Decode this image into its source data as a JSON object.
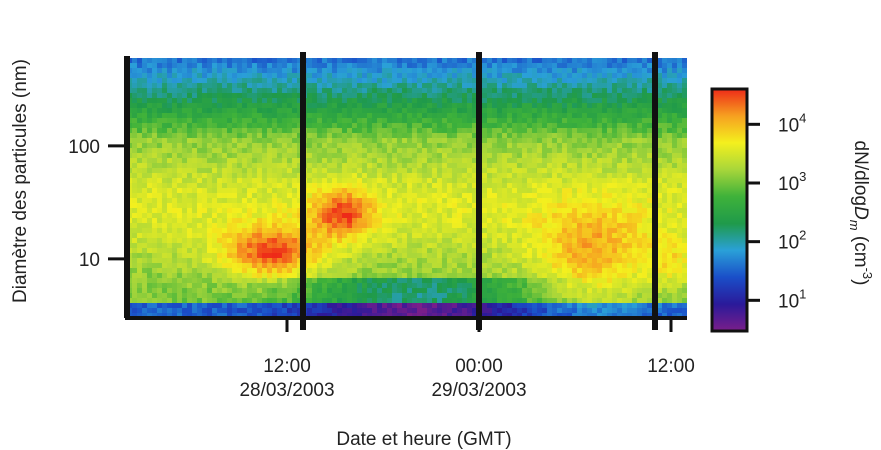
{
  "chart_data": {
    "type": "heatmap",
    "title": "",
    "xlabel": "Date et heure (GMT)",
    "ylabel": "Diamètre  des particules (nm)",
    "y_scale": "log",
    "ylim": [
      3,
      600
    ],
    "x_ticks": [
      {
        "line1": "12:00",
        "line2": "28/03/2003",
        "hour": 12
      },
      {
        "line1": "00:00",
        "line2": "29/03/2003",
        "hour": 24
      },
      {
        "line1": "12:00",
        "line2": "",
        "hour": 36
      }
    ],
    "xlim_hours": [
      2,
      37
    ],
    "y_ticks": [
      {
        "label": "100",
        "value": 100
      },
      {
        "label": "10",
        "value": 10
      }
    ],
    "day_separators_hours": [
      13,
      24,
      35
    ],
    "colorbar": {
      "title_prefix": "dN/dlog",
      "title_var": "D",
      "title_sub": "m",
      "title_unit_open": " (cm",
      "title_unit_sup": "-3",
      "title_unit_close": ")",
      "scale": "log",
      "range": [
        3,
        40000
      ],
      "ticks": [
        {
          "base": "10",
          "exp": "4",
          "value": 10000
        },
        {
          "base": "10",
          "exp": "3",
          "value": 1000
        },
        {
          "base": "10",
          "exp": "2",
          "value": 100
        },
        {
          "base": "10",
          "exp": "1",
          "value": 10
        }
      ],
      "colors": [
        "#7a1e8a",
        "#2a1a9a",
        "#1a4ec8",
        "#2aa0d8",
        "#1f9a4a",
        "#3fb23a",
        "#a8d63a",
        "#f4f01e",
        "#f6a020",
        "#ee2a18"
      ]
    }
  }
}
